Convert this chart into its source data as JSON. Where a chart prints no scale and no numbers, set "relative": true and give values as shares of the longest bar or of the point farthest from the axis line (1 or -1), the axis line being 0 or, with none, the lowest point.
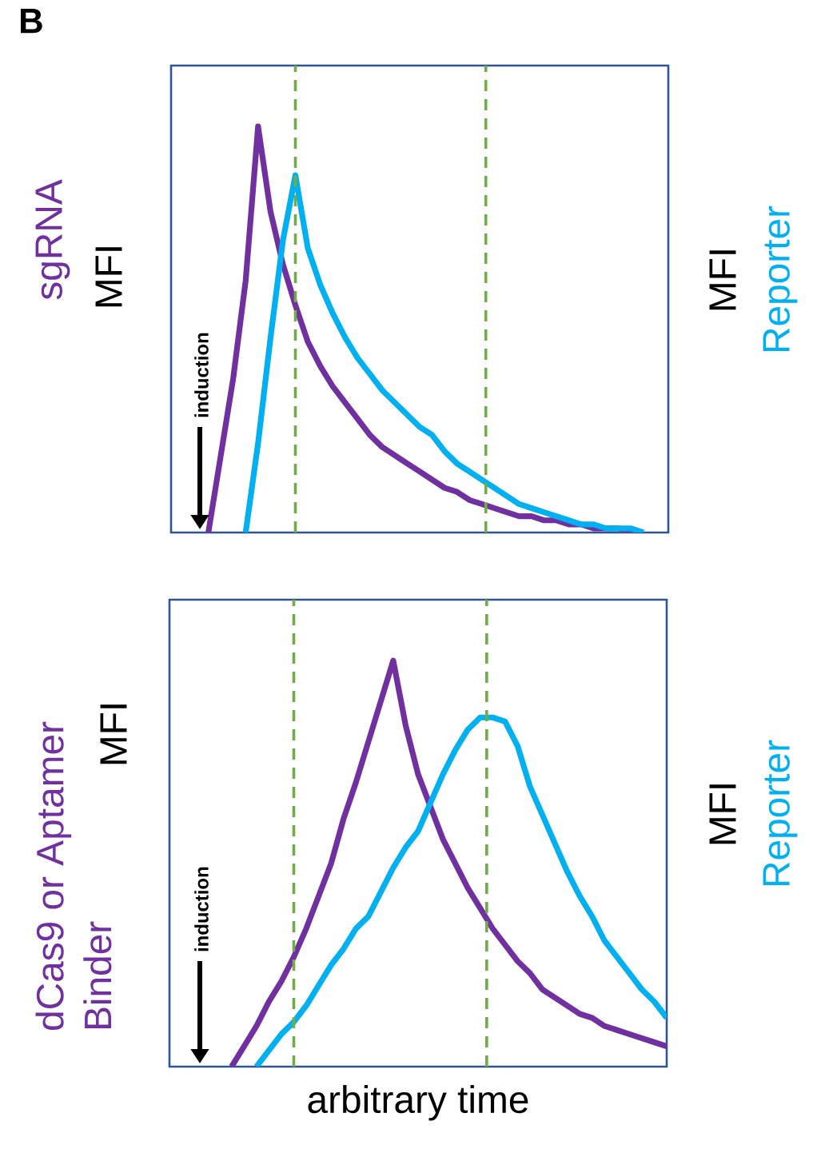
{
  "chart_data": [
    {
      "type": "line",
      "title": "B",
      "relative": true,
      "ylabel": "MFI",
      "y2label": "MFI",
      "tick_labels": false,
      "categories": [
        null,
        null,
        null,
        null,
        null,
        null,
        null,
        null,
        null,
        null,
        null,
        null,
        null,
        null,
        null,
        null,
        null,
        null,
        null,
        null,
        null,
        null,
        null,
        null,
        null,
        null,
        null,
        null,
        null,
        null,
        null,
        null,
        null,
        null,
        null,
        null,
        null,
        null,
        null,
        null,
        null
      ],
      "series": [
        {
          "name": "sgRNA",
          "color": "#7030a0",
          "values": [
            null,
            null,
            null,
            0,
            0.19,
            0.38,
            0.62,
            1,
            0.79,
            0.66,
            0.56,
            0.47,
            0.41,
            0.36,
            0.32,
            0.28,
            0.24,
            0.21,
            0.19,
            0.17,
            0.15,
            0.13,
            0.11,
            0.1,
            0.08,
            0.07,
            0.06,
            0.05,
            0.04,
            0.04,
            0.03,
            0.03,
            0.02,
            0.02,
            0.01,
            0.01,
            0.01,
            0,
            null,
            null,
            null
          ]
        },
        {
          "name": "Reporter",
          "color": "#00b0f0",
          "values": [
            null,
            null,
            null,
            null,
            null,
            null,
            0,
            0.22,
            0.48,
            0.72,
            0.88,
            0.7,
            0.61,
            0.54,
            0.48,
            0.43,
            0.39,
            0.35,
            0.32,
            0.29,
            0.26,
            0.24,
            0.2,
            0.17,
            0.15,
            0.13,
            0.11,
            0.09,
            0.07,
            0.06,
            0.05,
            0.04,
            0.03,
            0.02,
            0.02,
            0.01,
            0.01,
            0.01,
            0,
            null,
            null
          ]
        }
      ],
      "annotations": [
        "induction"
      ]
    },
    {
      "type": "line",
      "relative": true,
      "ylabel": "MFI",
      "y2label": "MFI",
      "xlabel": "arbitrary time",
      "tick_labels": false,
      "categories": [
        null,
        null,
        null,
        null,
        null,
        null,
        null,
        null,
        null,
        null,
        null,
        null,
        null,
        null,
        null,
        null,
        null,
        null,
        null,
        null,
        null,
        null,
        null,
        null,
        null,
        null,
        null,
        null,
        null,
        null,
        null,
        null,
        null,
        null,
        null,
        null,
        null,
        null,
        null,
        null,
        null
      ],
      "series": [
        {
          "name": "dCas9 or Aptamer Binder",
          "color": "#7030a0",
          "values": [
            null,
            null,
            null,
            null,
            null,
            0,
            0.05,
            0.1,
            0.16,
            0.21,
            0.27,
            0.34,
            0.42,
            0.5,
            0.61,
            0.7,
            0.8,
            0.9,
            1,
            0.84,
            0.72,
            0.64,
            0.56,
            0.5,
            0.44,
            0.39,
            0.34,
            0.3,
            0.26,
            0.23,
            0.19,
            0.17,
            0.15,
            0.13,
            0.12,
            0.1,
            0.09,
            0.08,
            0.07,
            0.06,
            0.05
          ]
        },
        {
          "name": "Reporter",
          "color": "#00b0f0",
          "values": [
            null,
            null,
            null,
            null,
            null,
            null,
            null,
            0,
            0.04,
            0.08,
            0.11,
            0.15,
            0.2,
            0.25,
            0.29,
            0.34,
            0.37,
            0.43,
            0.49,
            0.54,
            0.58,
            0.65,
            0.72,
            0.78,
            0.83,
            0.86,
            0.86,
            0.85,
            0.79,
            0.69,
            0.62,
            0.55,
            0.48,
            0.42,
            0.37,
            0.31,
            0.27,
            0.23,
            0.19,
            0.16,
            0.12
          ]
        }
      ],
      "annotations": [
        "induction"
      ]
    }
  ]
}
